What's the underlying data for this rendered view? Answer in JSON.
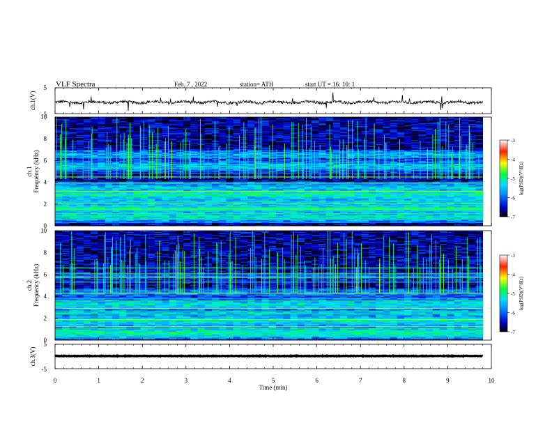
{
  "header": {
    "title": "VLF  Spectra",
    "date": "Feb. 7  , 2022",
    "station": "station= ATH",
    "start_ut": "start  UT  =    16: 10: 1"
  },
  "chart_data": [
    {
      "type": "line",
      "panel": "ch1-waveform",
      "ylabel": "ch.1(V)",
      "ylim": [
        -5,
        5
      ],
      "yticks": [
        "5",
        "-5"
      ],
      "xlim": [
        0,
        10
      ],
      "series_end_min": 9.8,
      "baseline_v": -0.6,
      "grid": false
    },
    {
      "type": "heatmap",
      "panel": "ch1-spectrogram",
      "ylabel": "ch.1\nFrequency  (kHz)",
      "ylim": [
        0,
        10
      ],
      "yticks": [
        "0",
        "2",
        "4",
        "6",
        "8",
        "10"
      ],
      "xlim": [
        0,
        10
      ],
      "data_end_min": 9.8,
      "colorbar": {
        "label": "log(PSD)(V²/Hz)",
        "range": [
          -7,
          -3
        ],
        "ticks": [
          "-3",
          "-4",
          "-5",
          "-6",
          "-7"
        ]
      },
      "dominant_bands_khz": [
        {
          "freq": 0.9,
          "level": -5.2
        },
        {
          "freq": 1.6,
          "level": -5.0
        },
        {
          "freq": 2.2,
          "level": -5.3
        },
        {
          "freq": 2.9,
          "level": -5.0
        },
        {
          "freq": 3.5,
          "level": -5.3
        },
        {
          "freq": 4.0,
          "level": -6.8
        },
        {
          "freq": 5.5,
          "level": -5.4
        },
        {
          "freq": 6.6,
          "level": -5.6
        },
        {
          "freq": 9.0,
          "level": -6.6
        }
      ]
    },
    {
      "type": "heatmap",
      "panel": "ch2-spectrogram",
      "ylabel": "ch.2\nFrequency  (kHz)",
      "ylim": [
        0,
        10
      ],
      "yticks": [
        "0",
        "2",
        "4",
        "6",
        "8",
        "10"
      ],
      "xlim": [
        0,
        10
      ],
      "data_end_min": 9.8,
      "colorbar": {
        "label": "log(PSD)(V²/Hz)",
        "range": [
          -7,
          -3
        ],
        "ticks": [
          "-3",
          "-4",
          "-5",
          "-6",
          "-7"
        ]
      },
      "dominant_bands_khz": [
        {
          "freq": 0.7,
          "level": -5.0
        },
        {
          "freq": 1.8,
          "level": -5.1
        },
        {
          "freq": 2.5,
          "level": -5.4
        },
        {
          "freq": 3.3,
          "level": -5.2
        },
        {
          "freq": 4.3,
          "level": -5.7
        },
        {
          "freq": 5.8,
          "level": -6.0
        },
        {
          "freq": 9.0,
          "level": -6.7
        }
      ]
    },
    {
      "type": "line",
      "panel": "ch3-waveform",
      "ylabel": "ch.3(V)",
      "ylim": [
        -5,
        5
      ],
      "yticks": [
        "5",
        "-5"
      ],
      "xlim": [
        0,
        10
      ],
      "xlabel": "Time  (min)",
      "xticks": [
        "0",
        "1",
        "2",
        "3",
        "4",
        "5",
        "6",
        "7",
        "8",
        "9",
        "10"
      ],
      "series_end_min": 9.8,
      "baseline_v": 0.2,
      "grid": false
    }
  ]
}
